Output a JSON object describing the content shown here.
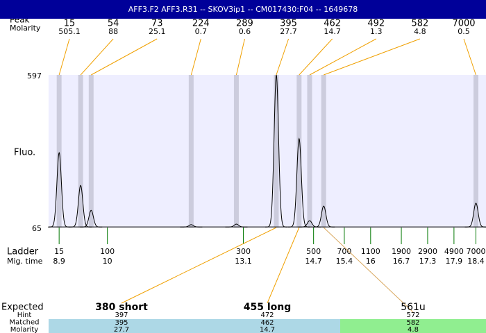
{
  "title": "AFF3.F2  AFF3.R31 -- SKOV3ip1 -- CM017430:F04 -- 1649678",
  "peak_label": "Peak",
  "molarity_label": "Molarity",
  "fluo_label": "Fluo.",
  "yticks": [
    65,
    597
  ],
  "ylim": [
    65,
    597
  ],
  "baseline": 67,
  "xlim": [
    8.66,
    18.63
  ],
  "peaks": [
    {
      "bp": 15,
      "molarity": 505.1,
      "time": 8.9,
      "height": 326
    },
    {
      "bp": 54,
      "molarity": 88,
      "time": 9.39,
      "height": 212
    },
    {
      "bp": 73,
      "molarity": 25.1,
      "time": 9.63,
      "height": 125
    },
    {
      "bp": 224,
      "molarity": 0.7,
      "time": 11.91,
      "height": 75
    },
    {
      "bp": 289,
      "molarity": 0.6,
      "time": 12.94,
      "height": 77
    },
    {
      "bp": 395,
      "molarity": 27.7,
      "time": 13.85,
      "height": 597
    },
    {
      "bp": 462,
      "molarity": 14.7,
      "time": 14.37,
      "height": 375
    },
    {
      "bp": 492,
      "molarity": 1.3,
      "time": 14.61,
      "height": 89
    },
    {
      "bp": 582,
      "molarity": 4.8,
      "time": 14.93,
      "height": 140
    },
    {
      "bp": 7000,
      "molarity": 0.5,
      "time": 18.4,
      "height": 150
    }
  ],
  "ladder_label": "Ladder",
  "time_label": "Mig. time",
  "ladder": [
    {
      "bp": 15,
      "time": 8.9
    },
    {
      "bp": 100,
      "time": 10
    },
    {
      "bp": 300,
      "time": 13.1
    },
    {
      "bp": 500,
      "time": 14.7
    },
    {
      "bp": 700,
      "time": 15.4
    },
    {
      "bp": 1100,
      "time": 16
    },
    {
      "bp": 1900,
      "time": 16.7
    },
    {
      "bp": 2900,
      "time": 17.3
    },
    {
      "bp": 4900,
      "time": 17.9
    },
    {
      "bp": 7000,
      "time": 18.4
    }
  ],
  "expected": {
    "label": "Expected",
    "row_labels": [
      "Hint",
      "Matched",
      "Molarity"
    ],
    "columns": [
      {
        "name": "380 short",
        "bold": true,
        "hint": 397,
        "matched": 395,
        "molarity": 27.7,
        "color": "#add8e6"
      },
      {
        "name": "455 long",
        "bold": true,
        "hint": 472,
        "matched": 462,
        "molarity": 14.7,
        "color": "#add8e6"
      },
      {
        "name": "561u",
        "bold": false,
        "hint": 572,
        "matched": 582,
        "molarity": 4.8,
        "color": "#90ee90"
      }
    ]
  }
}
